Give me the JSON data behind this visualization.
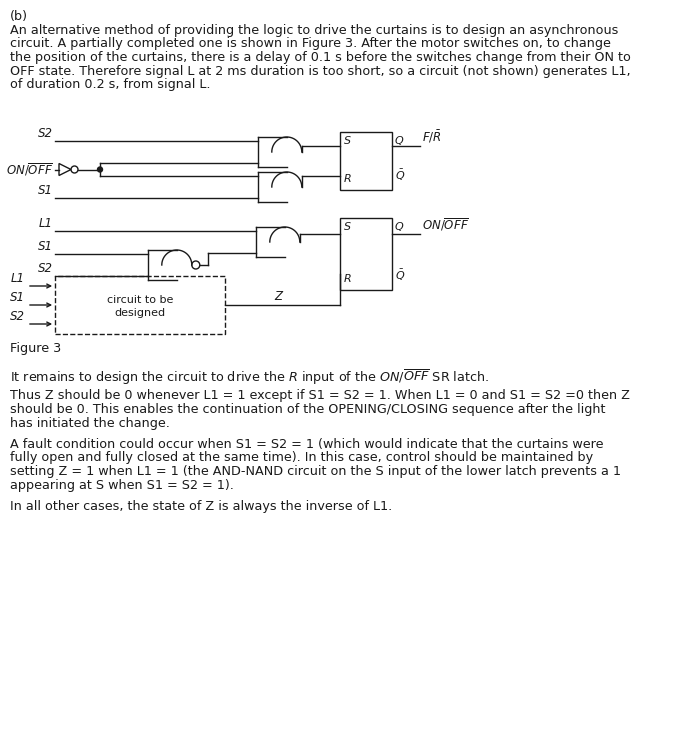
{
  "bg_color": "#ffffff",
  "text_color": "#1a1a1a",
  "line_color": "#1a1a1a",
  "para1_title": "(b)",
  "para1": "An alternative method of providing the logic to drive the curtains is to design an asynchronous\ncircuit. A partially completed one is shown in Figure 3. After the motor switches on, to change\nthe position of the curtains, there is a delay of 0.1 s before the switches change from their ON to\nOFF state. Therefore signal L at 2 ms duration is too short, so a circuit (not shown) generates L1,\nof duration 0.2 s, from signal L.",
  "fig_label": "Figure 3",
  "para2": "It remains to design the circuit to drive the $R$ input of the $ON/\\overline{OFF}$ SR latch.",
  "para3_line1": "Thus Z should be 0 whenever L1 = 1 except if S1 = S2 = 1. When L1 = 0 and S1 = S2 =0 then Z",
  "para3_line2": "should be 0. This enables the continuation of the OPENING/CLOSING sequence after the light",
  "para3_line3": "has initiated the change.",
  "para4_line1": "A fault condition could occur when S1 = S2 = 1 (which would indicate that the curtains were",
  "para4_line2": "fully open and fully closed at the same time). In this case, control should be maintained by",
  "para4_line3": "setting Z = 1 when L1 = 1 (the AND-NAND circuit on the S input of the lower latch prevents a 1",
  "para4_line4": "appearing at S when S1 = S2 = 1).",
  "para5": "In all other cases, the state of Z is always the inverse of L1."
}
